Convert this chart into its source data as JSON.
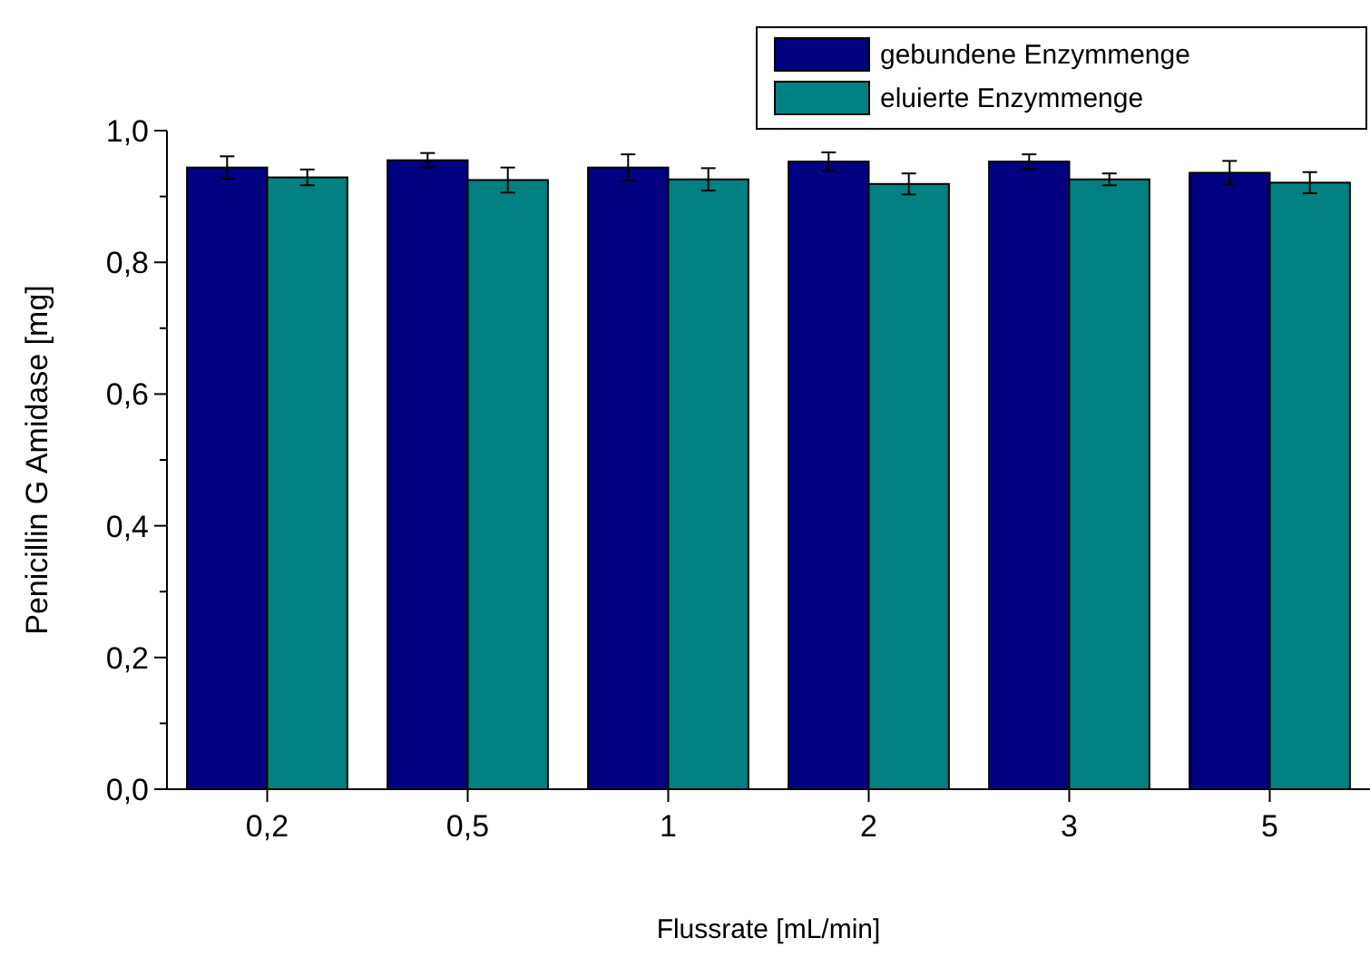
{
  "chart_data": {
    "type": "bar",
    "xlabel": "Flussrate [mL/min]",
    "ylabel": "Penicillin G Amidase [mg]",
    "categories": [
      "0,2",
      "0,5",
      "1",
      "2",
      "3",
      "5"
    ],
    "series": [
      {
        "name": "gebundene Enzymmenge",
        "color": "#000080",
        "values": [
          0.944,
          0.955,
          0.944,
          0.953,
          0.953,
          0.936
        ],
        "errors": [
          0.017,
          0.011,
          0.02,
          0.014,
          0.011,
          0.018
        ]
      },
      {
        "name": "eluierte Enzymmenge",
        "color": "#008080",
        "values": [
          0.929,
          0.925,
          0.926,
          0.919,
          0.926,
          0.921
        ],
        "errors": [
          0.012,
          0.019,
          0.017,
          0.016,
          0.009,
          0.016
        ]
      }
    ],
    "ylim": [
      0,
      1
    ],
    "yticks": [
      {
        "value": 0,
        "label": "0,0"
      },
      {
        "value": 0.1,
        "label": null
      },
      {
        "value": 0.2,
        "label": "0,2"
      },
      {
        "value": 0.3,
        "label": null
      },
      {
        "value": 0.4,
        "label": "0,4"
      },
      {
        "value": 0.5,
        "label": null
      },
      {
        "value": 0.6,
        "label": "0,6"
      },
      {
        "value": 0.7,
        "label": null
      },
      {
        "value": 0.8,
        "label": "0,8"
      },
      {
        "value": 0.9,
        "label": null
      },
      {
        "value": 1,
        "label": "1,0"
      }
    ],
    "legend": "top right",
    "grid": false
  }
}
